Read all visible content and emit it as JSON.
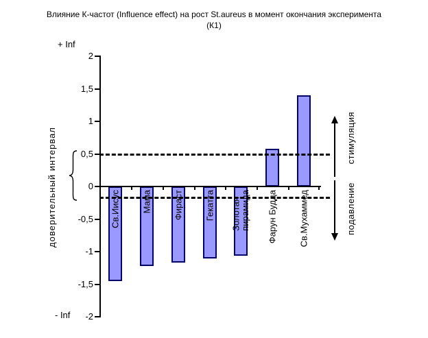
{
  "title": {
    "line1": "Влияние К-частот (Influence effect) на рост St.aureus в момент окончания эксперимента",
    "line2": "(К1)"
  },
  "y_axis": {
    "plus_inf": "+ Inf",
    "minus_inf": "- Inf",
    "ticks": [
      {
        "label": "2",
        "value": 2
      },
      {
        "label": "1,5",
        "value": 1.5
      },
      {
        "label": "1",
        "value": 1
      },
      {
        "label": "0,5",
        "value": 0.5
      },
      {
        "label": "0",
        "value": 0
      },
      {
        "label": "-0,5",
        "value": -0.5
      },
      {
        "label": "-1",
        "value": -1
      },
      {
        "label": "-1,5",
        "value": -1.5
      },
      {
        "label": "-2",
        "value": -2
      }
    ]
  },
  "left_axis_label": "доверительный интервал",
  "right_annotations": {
    "stimulation": "стимуляция",
    "suppression": "подавление"
  },
  "chart_data": {
    "type": "bar",
    "title": "Влияние К-частот (Influence effect) на рост St.aureus в момент окончания эксперимента (К1)",
    "categories": [
      "Св.Иисус",
      "Мама",
      "Фираст",
      "Гекатта",
      "Золотая пирамида",
      "Фарун Будда",
      "Св.Мухаммед"
    ],
    "category_label_lines": [
      [
        "Св.Иисус"
      ],
      [
        "Мама"
      ],
      [
        "Фираст"
      ],
      [
        "Гекатта"
      ],
      [
        "Золотая",
        "пирамида"
      ],
      [
        "Фарун Будда"
      ],
      [
        "Св.Мухаммед"
      ]
    ],
    "values": [
      -1.45,
      -1.22,
      -1.17,
      -1.11,
      -1.06,
      0.58,
      1.4
    ],
    "xlabel": "",
    "ylabel": "доверительный интервал",
    "ylim": [
      -2,
      2
    ],
    "ytick_step": 0.5,
    "y_top_annotation": "+ Inf",
    "y_bottom_annotation": "- Inf",
    "reference_lines": [
      0.5,
      -0.17
    ],
    "annotation_above": "стимуляция",
    "annotation_below": "подавление",
    "bar_fill": "#9999FF",
    "bar_border": "#000066",
    "grid": false,
    "legend": false
  }
}
